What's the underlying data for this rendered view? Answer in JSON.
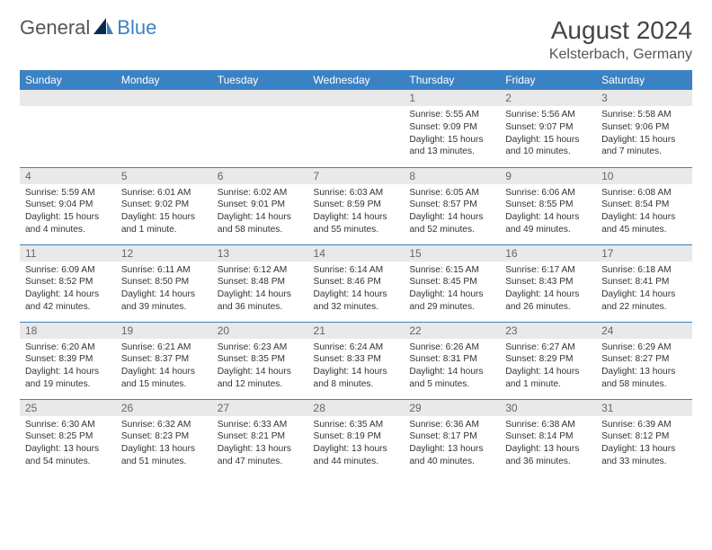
{
  "logo": {
    "part1": "General",
    "part2": "Blue"
  },
  "title": "August 2024",
  "location": "Kelsterbach, Germany",
  "colors": {
    "accent": "#3b82c4",
    "header_bg": "#3b82c4",
    "header_text": "#ffffff",
    "daynum_bg": "#e9e9e9",
    "text": "#333333",
    "border": "#3b82c4"
  },
  "day_headers": [
    "Sunday",
    "Monday",
    "Tuesday",
    "Wednesday",
    "Thursday",
    "Friday",
    "Saturday"
  ],
  "weeks": [
    [
      null,
      null,
      null,
      null,
      {
        "n": "1",
        "sr": "5:55 AM",
        "ss": "9:09 PM",
        "dl": "15 hours and 13 minutes."
      },
      {
        "n": "2",
        "sr": "5:56 AM",
        "ss": "9:07 PM",
        "dl": "15 hours and 10 minutes."
      },
      {
        "n": "3",
        "sr": "5:58 AM",
        "ss": "9:06 PM",
        "dl": "15 hours and 7 minutes."
      }
    ],
    [
      {
        "n": "4",
        "sr": "5:59 AM",
        "ss": "9:04 PM",
        "dl": "15 hours and 4 minutes."
      },
      {
        "n": "5",
        "sr": "6:01 AM",
        "ss": "9:02 PM",
        "dl": "15 hours and 1 minute."
      },
      {
        "n": "6",
        "sr": "6:02 AM",
        "ss": "9:01 PM",
        "dl": "14 hours and 58 minutes."
      },
      {
        "n": "7",
        "sr": "6:03 AM",
        "ss": "8:59 PM",
        "dl": "14 hours and 55 minutes."
      },
      {
        "n": "8",
        "sr": "6:05 AM",
        "ss": "8:57 PM",
        "dl": "14 hours and 52 minutes."
      },
      {
        "n": "9",
        "sr": "6:06 AM",
        "ss": "8:55 PM",
        "dl": "14 hours and 49 minutes."
      },
      {
        "n": "10",
        "sr": "6:08 AM",
        "ss": "8:54 PM",
        "dl": "14 hours and 45 minutes."
      }
    ],
    [
      {
        "n": "11",
        "sr": "6:09 AM",
        "ss": "8:52 PM",
        "dl": "14 hours and 42 minutes."
      },
      {
        "n": "12",
        "sr": "6:11 AM",
        "ss": "8:50 PM",
        "dl": "14 hours and 39 minutes."
      },
      {
        "n": "13",
        "sr": "6:12 AM",
        "ss": "8:48 PM",
        "dl": "14 hours and 36 minutes."
      },
      {
        "n": "14",
        "sr": "6:14 AM",
        "ss": "8:46 PM",
        "dl": "14 hours and 32 minutes."
      },
      {
        "n": "15",
        "sr": "6:15 AM",
        "ss": "8:45 PM",
        "dl": "14 hours and 29 minutes."
      },
      {
        "n": "16",
        "sr": "6:17 AM",
        "ss": "8:43 PM",
        "dl": "14 hours and 26 minutes."
      },
      {
        "n": "17",
        "sr": "6:18 AM",
        "ss": "8:41 PM",
        "dl": "14 hours and 22 minutes."
      }
    ],
    [
      {
        "n": "18",
        "sr": "6:20 AM",
        "ss": "8:39 PM",
        "dl": "14 hours and 19 minutes."
      },
      {
        "n": "19",
        "sr": "6:21 AM",
        "ss": "8:37 PM",
        "dl": "14 hours and 15 minutes."
      },
      {
        "n": "20",
        "sr": "6:23 AM",
        "ss": "8:35 PM",
        "dl": "14 hours and 12 minutes."
      },
      {
        "n": "21",
        "sr": "6:24 AM",
        "ss": "8:33 PM",
        "dl": "14 hours and 8 minutes."
      },
      {
        "n": "22",
        "sr": "6:26 AM",
        "ss": "8:31 PM",
        "dl": "14 hours and 5 minutes."
      },
      {
        "n": "23",
        "sr": "6:27 AM",
        "ss": "8:29 PM",
        "dl": "14 hours and 1 minute."
      },
      {
        "n": "24",
        "sr": "6:29 AM",
        "ss": "8:27 PM",
        "dl": "13 hours and 58 minutes."
      }
    ],
    [
      {
        "n": "25",
        "sr": "6:30 AM",
        "ss": "8:25 PM",
        "dl": "13 hours and 54 minutes."
      },
      {
        "n": "26",
        "sr": "6:32 AM",
        "ss": "8:23 PM",
        "dl": "13 hours and 51 minutes."
      },
      {
        "n": "27",
        "sr": "6:33 AM",
        "ss": "8:21 PM",
        "dl": "13 hours and 47 minutes."
      },
      {
        "n": "28",
        "sr": "6:35 AM",
        "ss": "8:19 PM",
        "dl": "13 hours and 44 minutes."
      },
      {
        "n": "29",
        "sr": "6:36 AM",
        "ss": "8:17 PM",
        "dl": "13 hours and 40 minutes."
      },
      {
        "n": "30",
        "sr": "6:38 AM",
        "ss": "8:14 PM",
        "dl": "13 hours and 36 minutes."
      },
      {
        "n": "31",
        "sr": "6:39 AM",
        "ss": "8:12 PM",
        "dl": "13 hours and 33 minutes."
      }
    ]
  ],
  "labels": {
    "sunrise": "Sunrise:",
    "sunset": "Sunset:",
    "daylight": "Daylight:"
  }
}
